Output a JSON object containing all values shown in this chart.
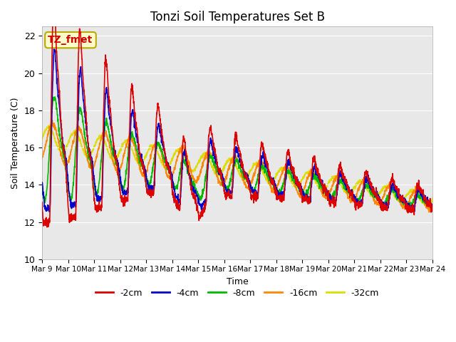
{
  "title": "Tonzi Soil Temperatures Set B",
  "xlabel": "Time",
  "ylabel": "Soil Temperature (C)",
  "ylim": [
    10,
    22.5
  ],
  "bg_color": "#e8e8e8",
  "fig_color": "#ffffff",
  "annotation_text": "TZ_fmet",
  "annotation_bg": "#ffffcc",
  "annotation_border": "#bbaa00",
  "annotation_text_color": "#cc0000",
  "series_colors": {
    "-2cm": "#dd0000",
    "-4cm": "#0000cc",
    "-8cm": "#00bb00",
    "-16cm": "#ff8800",
    "-32cm": "#dddd00"
  },
  "tick_labels": [
    "Mar 9",
    "Mar 10",
    "Mar 11",
    "Mar 12",
    "Mar 13",
    "Mar 14",
    "Mar 15",
    "Mar 16",
    "Mar 17",
    "Mar 18",
    "Mar 19",
    "Mar 20",
    "Mar 21",
    "Mar 22",
    "Mar 23",
    "Mar 24"
  ],
  "yticks": [
    10,
    12,
    14,
    16,
    18,
    20,
    22
  ],
  "grid_color": "#ffffff",
  "linewidth": 1.2
}
